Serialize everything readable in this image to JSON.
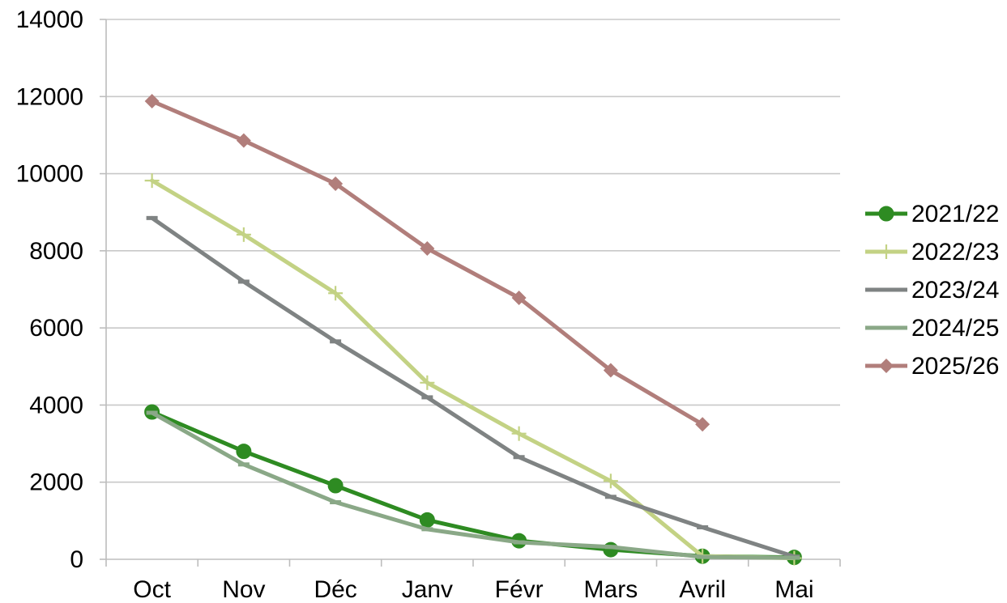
{
  "chart_data": {
    "type": "line",
    "title": "",
    "xlabel": "",
    "ylabel": "",
    "categories": [
      "Oct",
      "Nov",
      "Déc",
      "Janv",
      "Févr",
      "Mars",
      "Avril",
      "Mai"
    ],
    "ylim": [
      0,
      14000
    ],
    "yticks": [
      0,
      2000,
      4000,
      6000,
      8000,
      10000,
      12000,
      14000
    ],
    "ytick_labels": [
      "0",
      "2000",
      "4000",
      "6000",
      "8000",
      "10000",
      "12000",
      "14000"
    ],
    "grid": true,
    "legend_position": "right",
    "series": [
      {
        "name": "2021/22",
        "color": "#2e8b22",
        "marker": "circle",
        "values": [
          3820,
          2800,
          1910,
          1020,
          480,
          250,
          80,
          50
        ]
      },
      {
        "name": "2022/23",
        "color": "#c3d284",
        "marker": "plus",
        "values": [
          9820,
          8420,
          6900,
          4580,
          3260,
          2030,
          80,
          30
        ]
      },
      {
        "name": "2023/24",
        "color": "#7f8383",
        "marker": "dash",
        "values": [
          8850,
          7200,
          5650,
          4200,
          2650,
          1620,
          830,
          70
        ]
      },
      {
        "name": "2024/25",
        "color": "#8aa887",
        "marker": "dash",
        "values": [
          3800,
          2460,
          1480,
          780,
          440,
          320,
          60,
          40
        ]
      },
      {
        "name": "2025/26",
        "color": "#b17e7b",
        "marker": "diamond",
        "values": [
          11880,
          10860,
          9740,
          8060,
          6780,
          4900,
          3500,
          null
        ]
      }
    ]
  }
}
